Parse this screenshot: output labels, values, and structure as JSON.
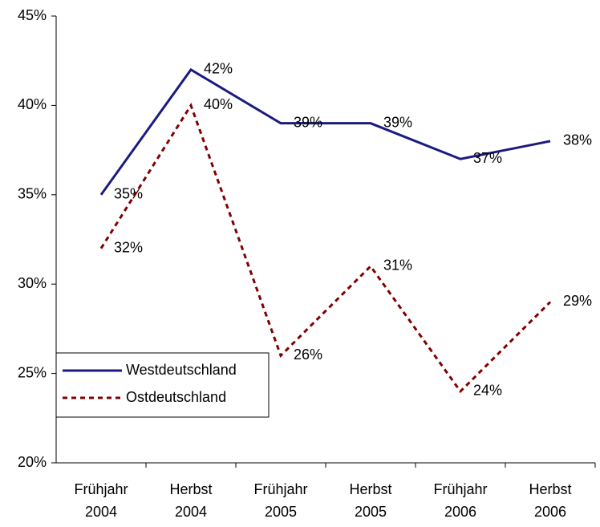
{
  "chart_data": {
    "type": "line",
    "categories": [
      "Frühjahr 2004",
      "Herbst 2004",
      "Frühjahr 2005",
      "Herbst 2005",
      "Frühjahr 2006",
      "Herbst 2006"
    ],
    "series": [
      {
        "name": "Westdeutschland",
        "color": "#1a1a80",
        "dash": "solid",
        "values": [
          35,
          42,
          39,
          39,
          37,
          38
        ],
        "value_labels": [
          "35%",
          "42%",
          "39%",
          "39%",
          "37%",
          "38%"
        ]
      },
      {
        "name": "Ostdeutschland",
        "color": "#800000",
        "dash": "dashed",
        "values": [
          32,
          40,
          26,
          31,
          24,
          29
        ],
        "value_labels": [
          "32%",
          "40%",
          "26%",
          "31%",
          "24%",
          "29%"
        ]
      }
    ],
    "ylim": [
      20,
      45
    ],
    "yticks": [
      {
        "value": 20,
        "label": "20%"
      },
      {
        "value": 25,
        "label": "25%"
      },
      {
        "value": 30,
        "label": "30%"
      },
      {
        "value": 35,
        "label": "35%"
      },
      {
        "value": 40,
        "label": "40%"
      },
      {
        "value": 45,
        "label": "45%"
      }
    ],
    "grid": false,
    "legend": "lower left"
  }
}
